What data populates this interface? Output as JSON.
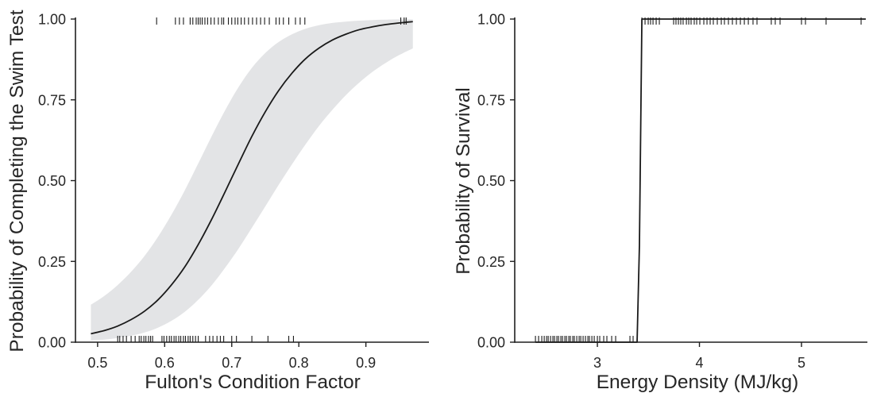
{
  "chart_data": [
    {
      "type": "line",
      "xlabel": "Fulton's Condition Factor",
      "ylabel": "Probability of Completing the Swim Test",
      "xlim": [
        0.467,
        0.994
      ],
      "ylim": [
        0,
        1
      ],
      "xticks": [
        0.5,
        0.6,
        0.7,
        0.8,
        0.9
      ],
      "xtick_labels": [
        "0.5",
        "0.6",
        "0.7",
        "0.8",
        "0.9"
      ],
      "yticks": [
        0,
        0.25,
        0.5,
        0.75,
        1
      ],
      "ytick_labels": [
        "0.00",
        "0.25",
        "0.50",
        "0.75",
        "1.00"
      ],
      "grid": false,
      "interpolation": "smooth",
      "fit": {
        "x": [
          0.49,
          0.51,
          0.53,
          0.55,
          0.57,
          0.59,
          0.61,
          0.63,
          0.65,
          0.67,
          0.69,
          0.71,
          0.73,
          0.75,
          0.77,
          0.79,
          0.81,
          0.83,
          0.85,
          0.87,
          0.89,
          0.91,
          0.93,
          0.95,
          0.97
        ],
        "y": [
          0.026,
          0.036,
          0.05,
          0.07,
          0.096,
          0.131,
          0.177,
          0.233,
          0.302,
          0.38,
          0.465,
          0.552,
          0.637,
          0.713,
          0.779,
          0.833,
          0.877,
          0.91,
          0.935,
          0.953,
          0.967,
          0.976,
          0.983,
          0.988,
          0.992
        ],
        "lower": [
          0.005,
          0.008,
          0.013,
          0.02,
          0.03,
          0.045,
          0.066,
          0.094,
          0.131,
          0.176,
          0.23,
          0.289,
          0.354,
          0.42,
          0.487,
          0.551,
          0.612,
          0.669,
          0.719,
          0.764,
          0.803,
          0.837,
          0.865,
          0.889,
          0.909
        ],
        "upper": [
          0.116,
          0.143,
          0.177,
          0.218,
          0.267,
          0.326,
          0.394,
          0.47,
          0.553,
          0.637,
          0.717,
          0.789,
          0.849,
          0.895,
          0.929,
          0.953,
          0.97,
          0.981,
          0.988,
          0.992,
          0.995,
          0.997,
          0.998,
          0.999,
          0.999
        ]
      },
      "rug": [
        {
          "y": 1,
          "x": [
            0.588,
            0.616,
            0.622,
            0.628,
            0.638,
            0.642,
            0.647,
            0.65,
            0.653,
            0.656,
            0.66,
            0.664,
            0.669,
            0.674,
            0.68,
            0.685,
            0.688,
            0.695,
            0.7,
            0.705,
            0.709,
            0.714,
            0.719,
            0.725,
            0.731,
            0.737,
            0.743,
            0.749,
            0.756,
            0.766,
            0.771,
            0.777,
            0.785,
            0.795,
            0.802,
            0.809,
            0.952,
            0.957,
            0.96
          ]
        },
        {
          "y": 0,
          "x": [
            0.53,
            0.533,
            0.538,
            0.543,
            0.55,
            0.556,
            0.562,
            0.565,
            0.569,
            0.572,
            0.576,
            0.579,
            0.582,
            0.596,
            0.599,
            0.603,
            0.607,
            0.61,
            0.614,
            0.617,
            0.621,
            0.624,
            0.628,
            0.631,
            0.635,
            0.638,
            0.642,
            0.646,
            0.65,
            0.661,
            0.667,
            0.672,
            0.678,
            0.683,
            0.688,
            0.7,
            0.707,
            0.73,
            0.754,
            0.785,
            0.792
          ]
        }
      ]
    },
    {
      "type": "line",
      "xlabel": "Energy Density (MJ/kg)",
      "ylabel": "Probability of Survival",
      "xlim": [
        2.19,
        5.646
      ],
      "ylim": [
        0,
        1
      ],
      "xticks": [
        3,
        4,
        5
      ],
      "xtick_labels": [
        "3",
        "4",
        "5"
      ],
      "yticks": [
        0,
        0.25,
        0.5,
        0.75,
        1
      ],
      "ytick_labels": [
        "0.00",
        "0.25",
        "0.50",
        "0.75",
        "1.00"
      ],
      "grid": false,
      "interpolation": "linear",
      "fit": {
        "x": [
          2.393,
          3.389,
          3.412,
          3.436,
          5.63
        ],
        "y": [
          0,
          0,
          0.3,
          1,
          1
        ]
      },
      "rug": [
        {
          "y": 1,
          "x": [
            3.436,
            3.467,
            3.498,
            3.521,
            3.545,
            3.576,
            3.607,
            3.747,
            3.77,
            3.794,
            3.817,
            3.84,
            3.872,
            3.895,
            3.918,
            3.949,
            3.973,
            4.004,
            4.043,
            4.074,
            4.105,
            4.136,
            4.175,
            4.214,
            4.245,
            4.284,
            4.323,
            4.362,
            4.401,
            4.44,
            4.479,
            4.525,
            4.564,
            4.704,
            4.743,
            4.79,
            5.0,
            5.039,
            5.241,
            5.584
          ]
        },
        {
          "y": 0,
          "x": [
            2.393,
            2.424,
            2.455,
            2.479,
            2.502,
            2.518,
            2.541,
            2.564,
            2.58,
            2.603,
            2.619,
            2.642,
            2.658,
            2.681,
            2.697,
            2.72,
            2.735,
            2.759,
            2.774,
            2.798,
            2.821,
            2.837,
            2.86,
            2.883,
            2.907,
            2.922,
            2.946,
            2.969,
            3.0,
            3.023,
            3.062,
            3.093,
            3.14,
            3.179,
            3.319,
            3.35,
            3.389
          ]
        }
      ]
    }
  ],
  "colors": {
    "line": "#1a1a1a",
    "band": "#e3e4e6",
    "axis": "#1f1f1f",
    "text": "#262626"
  }
}
